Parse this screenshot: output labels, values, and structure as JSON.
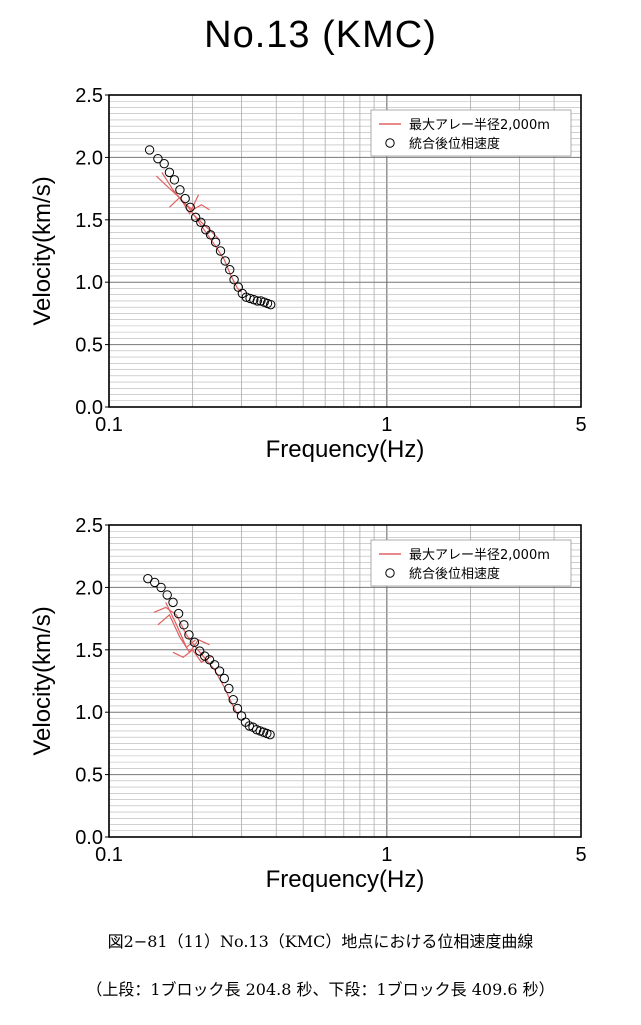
{
  "title": "No.13 (KMC)",
  "chart_data": [
    {
      "type": "scatter",
      "panel": "上段",
      "xlabel": "Frequency(Hz)",
      "ylabel": "Velocity(km/s)",
      "xscale": "log",
      "xlim": [
        0.1,
        5
      ],
      "ylim": [
        0.0,
        2.5
      ],
      "xticks": [
        0.1,
        1,
        5
      ],
      "xtick_labels": [
        "0.1",
        "1",
        "5"
      ],
      "yticks": [
        0.0,
        0.5,
        1.0,
        1.5,
        2.0,
        2.5
      ],
      "ytick_labels": [
        "0.0",
        "0.5",
        "1.0",
        "1.5",
        "2.0",
        "2.5"
      ],
      "grid": true,
      "legend_position": "top-right",
      "series": [
        {
          "name": "最大アレー半径2,000m",
          "kind": "line",
          "color": "#e06060",
          "segments": [
            {
              "x": [
                0.148,
                0.16,
                0.175,
                0.19,
                0.205,
                0.22,
                0.24,
                0.26,
                0.275,
                0.29,
                0.3
              ],
              "y": [
                1.85,
                1.78,
                1.7,
                1.62,
                1.52,
                1.42,
                1.3,
                1.18,
                1.05,
                0.95,
                0.92
              ]
            },
            {
              "x": [
                0.155,
                0.17,
                0.185,
                0.2,
                0.215,
                0.23
              ],
              "y": [
                1.88,
                1.74,
                1.64,
                1.58,
                1.62,
                1.58
              ]
            },
            {
              "x": [
                0.165,
                0.18,
                0.195,
                0.21
              ],
              "y": [
                1.6,
                1.68,
                1.55,
                1.7
              ]
            },
            {
              "x": [
                0.2,
                0.215,
                0.235,
                0.25
              ],
              "y": [
                1.55,
                1.48,
                1.4,
                1.34
              ]
            }
          ]
        },
        {
          "name": "統合後位相速度",
          "kind": "marker",
          "color": "#000000",
          "x": [
            0.14,
            0.15,
            0.158,
            0.165,
            0.172,
            0.18,
            0.188,
            0.196,
            0.205,
            0.214,
            0.223,
            0.232,
            0.242,
            0.252,
            0.262,
            0.272,
            0.282,
            0.292,
            0.302,
            0.312,
            0.322,
            0.332,
            0.342,
            0.352,
            0.362,
            0.372,
            0.382
          ],
          "y": [
            2.06,
            1.99,
            1.95,
            1.88,
            1.82,
            1.74,
            1.67,
            1.6,
            1.52,
            1.48,
            1.42,
            1.38,
            1.32,
            1.25,
            1.17,
            1.1,
            1.02,
            0.96,
            0.91,
            0.88,
            0.87,
            0.86,
            0.85,
            0.85,
            0.84,
            0.83,
            0.82
          ]
        }
      ]
    },
    {
      "type": "scatter",
      "panel": "下段",
      "xlabel": "Frequency(Hz)",
      "ylabel": "Velocity(km/s)",
      "xscale": "log",
      "xlim": [
        0.1,
        5
      ],
      "ylim": [
        0.0,
        2.5
      ],
      "xticks": [
        0.1,
        1,
        5
      ],
      "xtick_labels": [
        "0.1",
        "1",
        "5"
      ],
      "yticks": [
        0.0,
        0.5,
        1.0,
        1.5,
        2.0,
        2.5
      ],
      "ytick_labels": [
        "0.0",
        "0.5",
        "1.0",
        "1.5",
        "2.0",
        "2.5"
      ],
      "grid": true,
      "legend_position": "top-right",
      "series": [
        {
          "name": "最大アレー半径2,000m",
          "kind": "line",
          "color": "#e06060",
          "segments": [
            {
              "x": [
                0.145,
                0.16,
                0.175,
                0.19,
                0.205,
                0.22,
                0.24,
                0.26,
                0.275,
                0.29
              ],
              "y": [
                1.8,
                1.84,
                1.78,
                1.62,
                1.52,
                1.44,
                1.34,
                1.2,
                1.08,
                0.98
              ]
            },
            {
              "x": [
                0.15,
                0.165,
                0.18,
                0.195,
                0.21,
                0.23
              ],
              "y": [
                1.7,
                1.78,
                1.6,
                1.48,
                1.58,
                1.54
              ]
            },
            {
              "x": [
                0.17,
                0.185,
                0.2,
                0.215,
                0.235
              ],
              "y": [
                1.48,
                1.44,
                1.5,
                1.4,
                1.45
              ]
            },
            {
              "x": [
                0.16,
                0.175,
                0.19,
                0.205
              ],
              "y": [
                1.88,
                1.7,
                1.52,
                1.58
              ]
            }
          ]
        },
        {
          "name": "統合後位相速度",
          "kind": "marker",
          "color": "#000000",
          "x": [
            0.138,
            0.146,
            0.154,
            0.162,
            0.17,
            0.178,
            0.186,
            0.194,
            0.203,
            0.212,
            0.221,
            0.23,
            0.24,
            0.25,
            0.26,
            0.27,
            0.28,
            0.29,
            0.3,
            0.31,
            0.32,
            0.33,
            0.34,
            0.35,
            0.36,
            0.37,
            0.38
          ],
          "y": [
            2.07,
            2.04,
            2.0,
            1.94,
            1.88,
            1.79,
            1.7,
            1.62,
            1.56,
            1.49,
            1.45,
            1.42,
            1.38,
            1.33,
            1.27,
            1.19,
            1.1,
            1.03,
            0.97,
            0.92,
            0.89,
            0.88,
            0.86,
            0.85,
            0.84,
            0.83,
            0.82
          ]
        }
      ]
    }
  ],
  "caption": "図2−81（11）No.13（KMC）地点における位相速度曲線",
  "caption_sub": "（上段：1ブロック長 204.8 秒、下段：1ブロック長 409.6 秒）"
}
